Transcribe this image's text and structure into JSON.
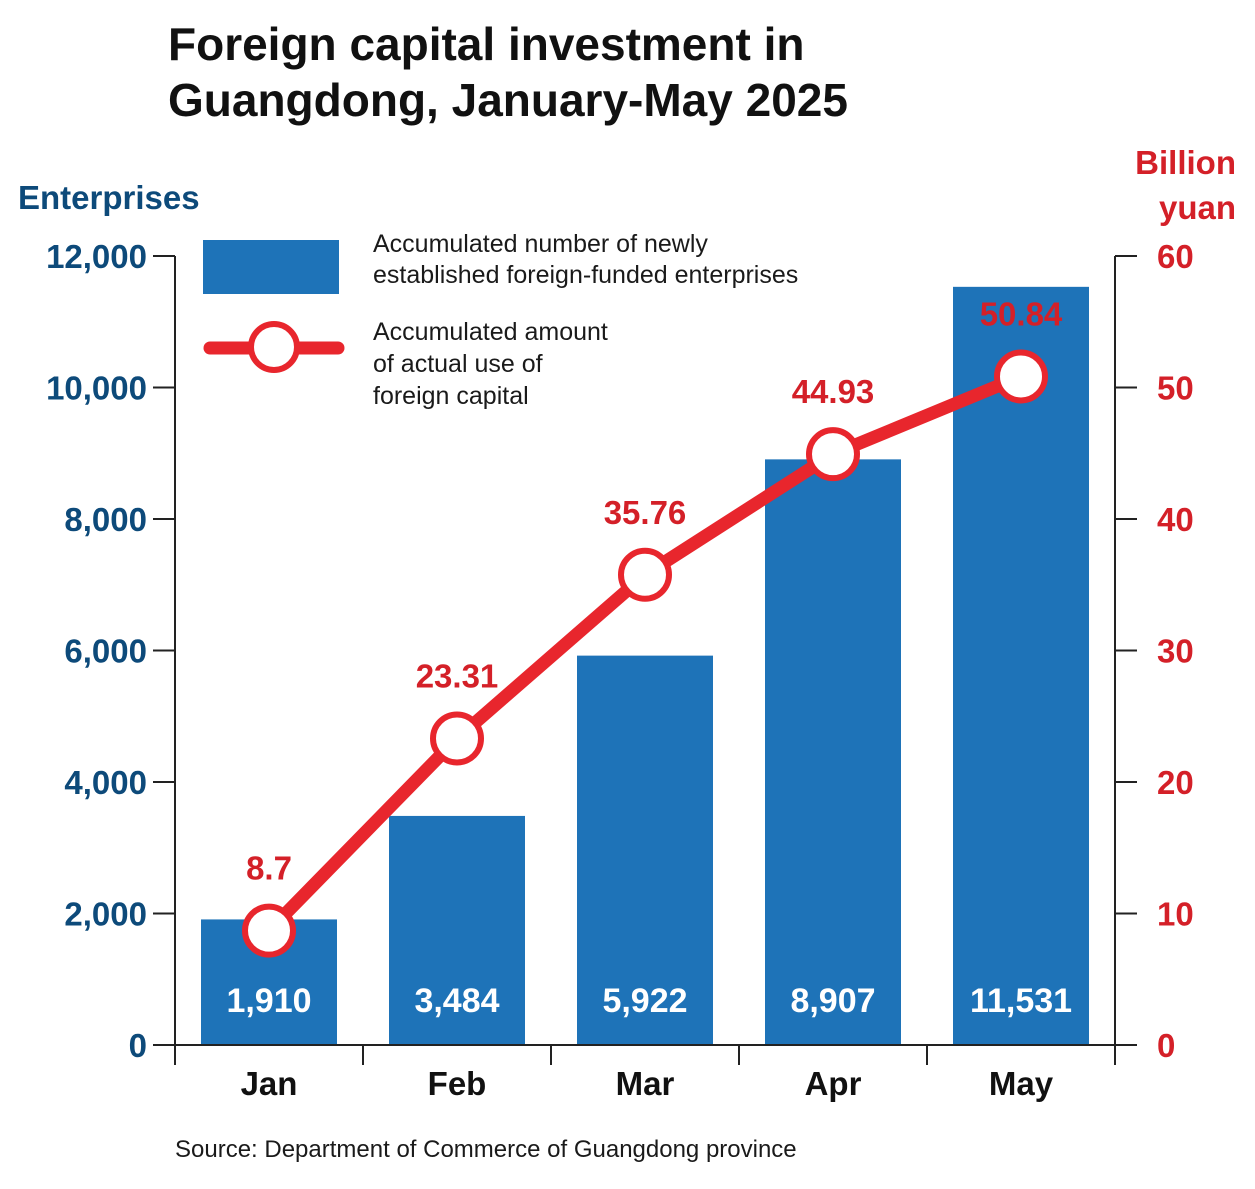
{
  "title_lines": [
    "Foreign capital investment in",
    "Guangdong, January-May 2025"
  ],
  "source": "Source: Department of Commerce of Guangdong province",
  "colors": {
    "bar": "#1e73b8",
    "line": "#e8262d",
    "left_axis_text": "#0d4a7a",
    "right_axis_text": "#d42028",
    "axis": "#222222",
    "title": "#111111"
  },
  "chart_data": {
    "type": "bar+line",
    "categories": [
      "Jan",
      "Feb",
      "Mar",
      "Apr",
      "May"
    ],
    "left_axis": {
      "label": "Enterprises",
      "range": [
        0,
        12000
      ],
      "ticks": [
        0,
        2000,
        4000,
        6000,
        8000,
        10000,
        12000
      ],
      "tick_labels": [
        "0",
        "2,000",
        "4,000",
        "6,000",
        "8,000",
        "10,000",
        "12,000"
      ]
    },
    "right_axis": {
      "label_lines": [
        "Billion",
        "yuan"
      ],
      "range": [
        0,
        60
      ],
      "ticks": [
        0,
        10,
        20,
        30,
        40,
        50,
        60
      ],
      "tick_labels": [
        "0",
        "10",
        "20",
        "30",
        "40",
        "50",
        "60"
      ]
    },
    "series": [
      {
        "name_lines": [
          "Accumulated number of newly",
          "established foreign-funded enterprises"
        ],
        "type": "bar",
        "axis": "left",
        "values": [
          1910,
          3484,
          5922,
          8907,
          11531
        ],
        "labels": [
          "1,910",
          "3,484",
          "5,922",
          "8,907",
          "11,531"
        ]
      },
      {
        "name_lines": [
          "Accumulated amount",
          "of actual use of",
          "foreign capital"
        ],
        "type": "line",
        "axis": "right",
        "values": [
          8.7,
          23.31,
          35.76,
          44.93,
          50.84
        ],
        "labels": [
          "8.7",
          "23.31",
          "35.76",
          "44.93",
          "50.84"
        ]
      }
    ],
    "legend_position": "top-left"
  }
}
